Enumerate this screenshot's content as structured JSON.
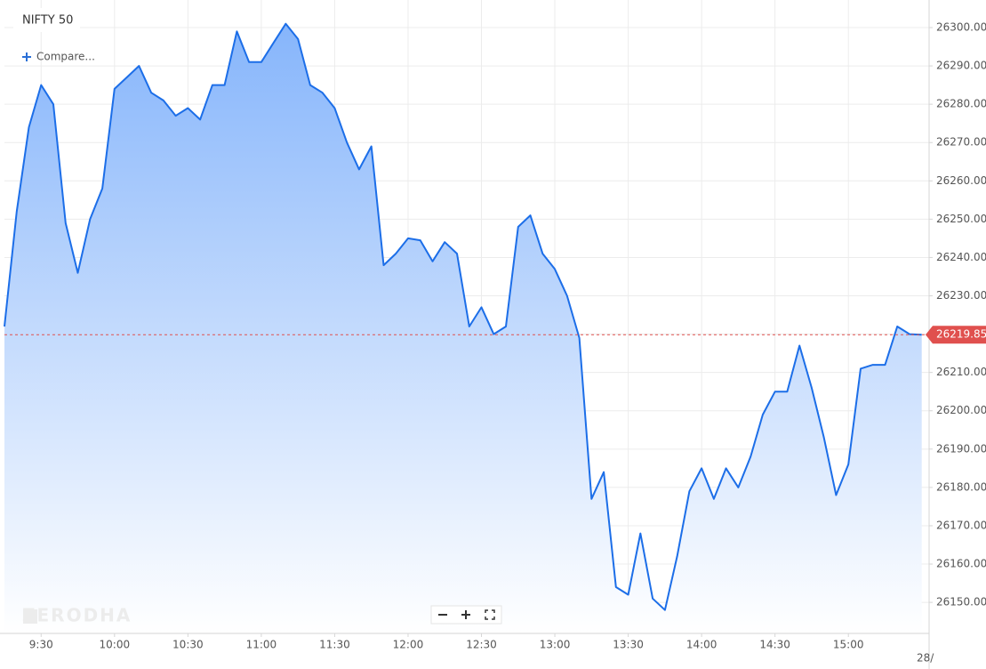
{
  "chart_data": {
    "type": "area",
    "title": "NIFTY 50",
    "compare_label": "Compare...",
    "watermark": "ZERODHA",
    "next_day_label": "28/",
    "x": [
      555,
      560,
      565,
      570,
      575,
      580,
      585,
      590,
      595,
      600,
      605,
      610,
      615,
      620,
      625,
      630,
      635,
      640,
      645,
      650,
      655,
      660,
      665,
      670,
      675,
      680,
      685,
      690,
      695,
      700,
      705,
      710,
      715,
      720,
      725,
      730,
      735,
      740,
      745,
      750,
      755,
      760,
      765,
      770,
      775,
      780,
      785,
      790,
      795,
      800,
      805,
      810,
      815,
      820,
      825,
      830,
      835,
      840,
      845,
      850,
      855,
      860,
      865,
      870,
      875,
      880,
      885,
      890,
      895,
      900,
      905,
      910,
      915,
      920,
      925,
      930
    ],
    "values": [
      26222,
      26252,
      26274,
      26285,
      26280,
      26249,
      26236,
      26250,
      26258,
      26284,
      26287,
      26290,
      26283,
      26281,
      26277,
      26279,
      26276,
      26285,
      26285,
      26299,
      26291,
      26291,
      26296,
      26301,
      26297,
      26285,
      26283,
      26279,
      26270,
      26263,
      26269,
      26238,
      26241,
      26245,
      26244.5,
      26239,
      26244,
      26241,
      26222,
      26227,
      26220,
      26222,
      26248,
      26251,
      26241,
      26237,
      26230,
      26219,
      26177,
      26184,
      26154,
      26152,
      26168,
      26151,
      26148,
      26162,
      26179,
      26185,
      26177,
      26185,
      26180,
      26188,
      26199,
      26205,
      26205,
      26217,
      26206,
      26193,
      26178,
      26186,
      26211,
      26212,
      26212,
      26222,
      26220,
      26219.85
    ],
    "color": "#1c6ee8",
    "fill_color": "#86b5fb",
    "last_color": "#e0504e",
    "xlim": [
      555,
      933
    ],
    "ylim": [
      26141.9,
      26307.2
    ],
    "xticks": [
      {
        "value": 570,
        "label": "9:30"
      },
      {
        "value": 600,
        "label": "10:00"
      },
      {
        "value": 630,
        "label": "10:30"
      },
      {
        "value": 660,
        "label": "11:00"
      },
      {
        "value": 690,
        "label": "11:30"
      },
      {
        "value": 720,
        "label": "12:00"
      },
      {
        "value": 750,
        "label": "12:30"
      },
      {
        "value": 780,
        "label": "13:00"
      },
      {
        "value": 810,
        "label": "13:30"
      },
      {
        "value": 840,
        "label": "14:00"
      },
      {
        "value": 870,
        "label": "14:30"
      },
      {
        "value": 900,
        "label": "15:00"
      }
    ],
    "yticks": [
      {
        "value": 26150,
        "label": "26150.00"
      },
      {
        "value": 26160,
        "label": "26160.00"
      },
      {
        "value": 26170,
        "label": "26170.00"
      },
      {
        "value": 26180,
        "label": "26180.00"
      },
      {
        "value": 26190,
        "label": "26190.00"
      },
      {
        "value": 26200,
        "label": "26200.00"
      },
      {
        "value": 26210,
        "label": "26210.00"
      },
      {
        "value": 26220,
        "label": "26220.00"
      },
      {
        "value": 26230,
        "label": "26230.00"
      },
      {
        "value": 26240,
        "label": "26240.00"
      },
      {
        "value": 26250,
        "label": "26250.00"
      },
      {
        "value": 26260,
        "label": "26260.00"
      },
      {
        "value": 26270,
        "label": "26270.00"
      },
      {
        "value": 26280,
        "label": "26280.00"
      },
      {
        "value": 26290,
        "label": "26290.00"
      },
      {
        "value": 26300,
        "label": "26300.00"
      }
    ],
    "grid": true
  }
}
